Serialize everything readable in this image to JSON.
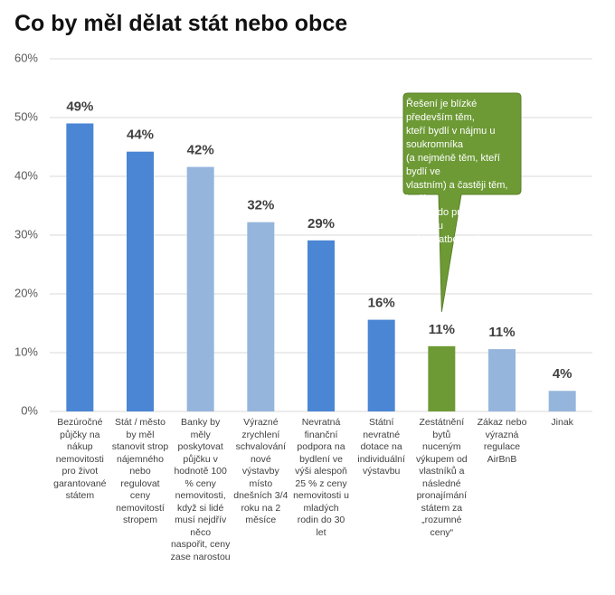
{
  "chart_data": {
    "type": "bar",
    "title": "Co by měl dělat stát nebo obce",
    "categories": [
      "Bezúročné\npůjčky na\nnákup\nnemovitosti\npro život\ngarantované\nstátem",
      "Stát / město\nby měl\nstanovit strop\nnájemného\nnebo\nregulovat\nceny\nnemovitostí\nstropem",
      "Banky by\nměly\nposkytovat\npůjčku v\nhodnotě 100\n% ceny\nnemovitosti,\nkdyž si lidé\nmusí nejdřív\nněco\nnaspořit, ceny\nzase narostou",
      "Výrazné\nzrychlení\nschvalování\nnové\nvýstavby\nmísto\ndnešních 3/4\nroku na 2\nměsíce",
      "Nevratná\nfinanční\npodpora na\nbydlení ve\nvýši alespoň\n25 % z ceny\nnemovitosti u\nmladých\nrodin do 30\nlet",
      "Státní\nnevratné\ndotace na\nindividuální\nvýstavbu",
      "Zestátnění\nbytů\nnuceným\nvýkupem od\nvlastníků a\nnásledné\npronajímání\nstátem za\n„rozumné\nceny“",
      "Zákaz nebo\nvýrazná\nregulace\nAirBnB",
      "Jinak"
    ],
    "values": [
      49,
      44.2,
      41.6,
      32.2,
      29.1,
      15.6,
      11.1,
      10.6,
      3.5
    ],
    "value_labels": [
      "49%",
      "44%",
      "42%",
      "32%",
      "29%",
      "16%",
      "11%",
      "11%",
      "4%"
    ],
    "colors": [
      "#4a86d4",
      "#4a86d4",
      "#95b5dc",
      "#95b5dc",
      "#4a86d4",
      "#4a86d4",
      "#6d9a35",
      "#95b5dc",
      "#95b5dc"
    ],
    "ylim": [
      0,
      60
    ],
    "yticks": [
      {
        "value": 0,
        "label": "0%"
      },
      {
        "value": 10,
        "label": "10%"
      },
      {
        "value": 20,
        "label": "20%"
      },
      {
        "value": 30,
        "label": "30%"
      },
      {
        "value": 40,
        "label": "40%"
      },
      {
        "value": 50,
        "label": "50%"
      },
      {
        "value": 60,
        "label": "60%"
      }
    ],
    "grid": true,
    "annotation": {
      "text": "Řešení je blízké především těm,\nkteří bydlí v nájmu u soukromníka\n(a nejméně těm, kteří bydlí ve\nvlastním) a častěji těm, kteří se\ndostali do prodlení se splátkou\nnebo platbou pokuty.",
      "color": "#6d9a35",
      "category_index": 6
    }
  }
}
